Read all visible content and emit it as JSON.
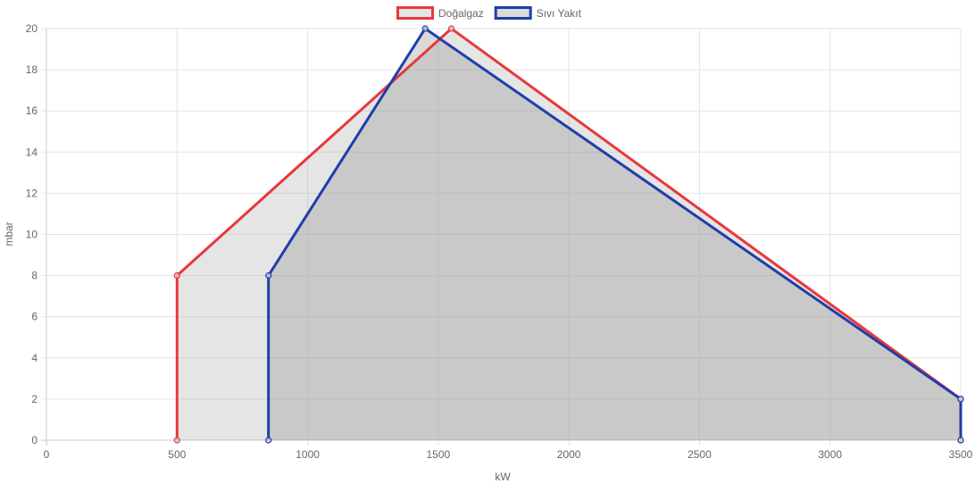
{
  "chart_data": {
    "type": "area",
    "xlabel": "kW",
    "ylabel": "mbar",
    "xlim": [
      0,
      3500
    ],
    "ylim": [
      0,
      20
    ],
    "x_ticks": [
      0,
      500,
      1000,
      1500,
      2000,
      2500,
      3000,
      3500
    ],
    "y_ticks": [
      0,
      2,
      4,
      6,
      8,
      10,
      12,
      14,
      16,
      18,
      20
    ],
    "grid": true,
    "legend_position": "top",
    "series": [
      {
        "name": "Doğalgaz",
        "color": "#e8383b",
        "fill": "rgba(150,150,150,0.25)",
        "points": [
          [
            500,
            0
          ],
          [
            500,
            8
          ],
          [
            1550,
            20
          ],
          [
            3500,
            2
          ],
          [
            3500,
            0
          ]
        ]
      },
      {
        "name": "Sıvı Yakıt",
        "color": "#1f3ea8",
        "fill": "rgba(150,150,150,0.35)",
        "points": [
          [
            850,
            0
          ],
          [
            850,
            8
          ],
          [
            1450,
            20
          ],
          [
            3500,
            2
          ],
          [
            3500,
            0
          ]
        ]
      }
    ]
  }
}
